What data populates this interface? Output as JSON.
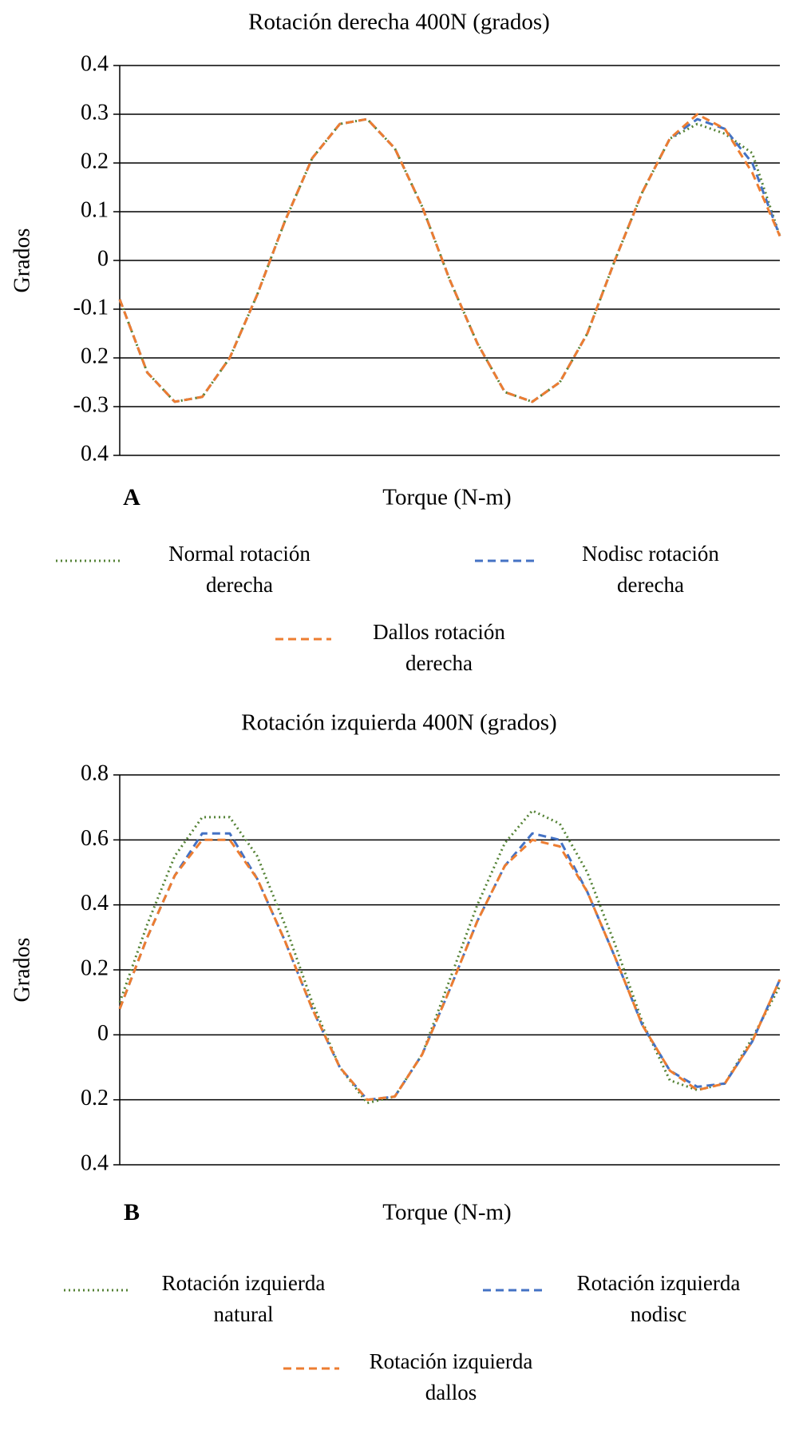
{
  "chart_data": [
    {
      "type": "line",
      "title": "Rotación derecha 400N (grados)",
      "y_label": "Grados",
      "x_label": "Torque (N-m)",
      "annotation": "A",
      "categories": [
        null,
        null,
        null,
        null,
        null,
        null,
        null,
        null,
        null,
        null,
        null,
        null,
        null,
        null,
        null,
        null,
        null,
        null,
        null,
        null,
        null,
        null,
        null,
        null,
        null
      ],
      "ylim": [
        -0.4,
        0.4
      ],
      "yticks": [
        {
          "value": -0.4,
          "label": "0.4"
        },
        -0.3,
        {
          "value": -0.2,
          "label": "0.2"
        },
        -0.1,
        0,
        0.1,
        0.2,
        0.3,
        0.4
      ],
      "grid": true,
      "series": [
        {
          "name": "Normal rotación derecha",
          "color": "#548235",
          "style": "dotted",
          "values": [
            -0.08,
            -0.23,
            -0.29,
            -0.28,
            -0.2,
            -0.07,
            0.08,
            0.21,
            0.28,
            0.29,
            0.23,
            0.11,
            -0.04,
            -0.17,
            -0.27,
            -0.29,
            -0.25,
            -0.15,
            0.0,
            0.14,
            0.25,
            0.28,
            0.26,
            0.22,
            0.05
          ]
        },
        {
          "name": "Nodisc rotación derecha",
          "color": "#4472c4",
          "style": "dashed",
          "values": [
            -0.08,
            -0.23,
            -0.29,
            -0.28,
            -0.2,
            -0.07,
            0.08,
            0.21,
            0.28,
            0.29,
            0.23,
            0.11,
            -0.04,
            -0.17,
            -0.27,
            -0.29,
            -0.25,
            -0.15,
            0.0,
            0.14,
            0.25,
            0.29,
            0.27,
            0.2,
            0.05
          ]
        },
        {
          "name": "Dallos rotación derecha",
          "color": "#ed7d31",
          "style": "dashed",
          "values": [
            -0.08,
            -0.23,
            -0.29,
            -0.28,
            -0.2,
            -0.07,
            0.08,
            0.21,
            0.28,
            0.29,
            0.23,
            0.11,
            -0.04,
            -0.17,
            -0.27,
            -0.29,
            -0.25,
            -0.15,
            0.0,
            0.14,
            0.25,
            0.3,
            0.27,
            0.18,
            0.05
          ]
        }
      ]
    },
    {
      "type": "line",
      "title": "Rotación izquierda 400N (grados)",
      "y_label": "Grados",
      "x_label": "Torque (N-m)",
      "annotation": "B",
      "categories": [
        null,
        null,
        null,
        null,
        null,
        null,
        null,
        null,
        null,
        null,
        null,
        null,
        null,
        null,
        null,
        null,
        null,
        null,
        null,
        null,
        null,
        null,
        null,
        null,
        null
      ],
      "ylim": [
        -0.4,
        0.8
      ],
      "yticks": [
        {
          "value": -0.4,
          "label": "0.4"
        },
        {
          "value": -0.2,
          "label": "0.2"
        },
        0,
        0.2,
        0.4,
        0.6,
        0.8
      ],
      "grid": true,
      "series": [
        {
          "name": "Rotación izquierda natural",
          "color": "#548235",
          "style": "dotted",
          "values": [
            0.1,
            0.34,
            0.55,
            0.67,
            0.67,
            0.55,
            0.34,
            0.1,
            -0.1,
            -0.21,
            -0.19,
            -0.06,
            0.17,
            0.4,
            0.59,
            0.69,
            0.65,
            0.5,
            0.28,
            0.04,
            -0.14,
            -0.17,
            -0.15,
            -0.01,
            0.15
          ]
        },
        {
          "name": "Rotación izquierda nodisc",
          "color": "#4472c4",
          "style": "dashed",
          "values": [
            0.08,
            0.3,
            0.49,
            0.62,
            0.62,
            0.48,
            0.29,
            0.08,
            -0.1,
            -0.2,
            -0.19,
            -0.06,
            0.14,
            0.35,
            0.52,
            0.62,
            0.6,
            0.44,
            0.24,
            0.03,
            -0.11,
            -0.16,
            -0.15,
            -0.02,
            0.17
          ]
        },
        {
          "name": "Rotación izquierda dallos",
          "color": "#ed7d31",
          "style": "dashed",
          "values": [
            0.08,
            0.3,
            0.49,
            0.6,
            0.6,
            0.48,
            0.29,
            0.08,
            -0.1,
            -0.2,
            -0.19,
            -0.06,
            0.14,
            0.35,
            0.52,
            0.6,
            0.58,
            0.44,
            0.24,
            0.03,
            -0.11,
            -0.17,
            -0.15,
            -0.02,
            0.17
          ]
        }
      ]
    }
  ]
}
